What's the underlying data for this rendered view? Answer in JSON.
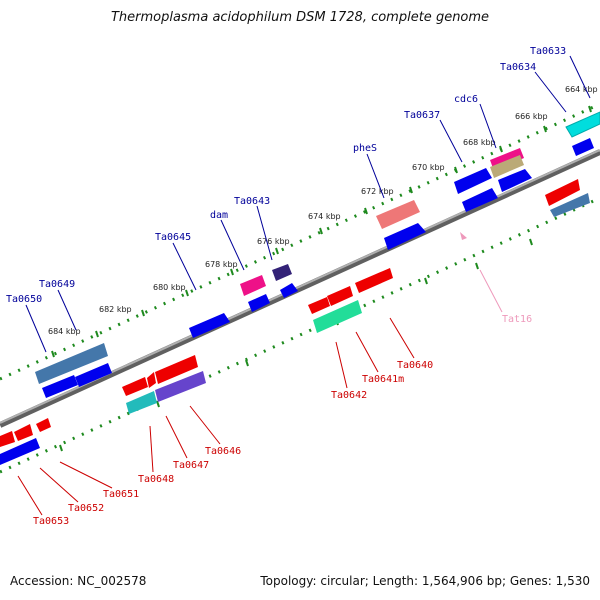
{
  "title": "Thermoplasma acidophilum DSM 1728, complete genome",
  "footer": {
    "accession": "Accession: NC_002578",
    "stats": "Topology: circular; Length: 1,564,906 bp; Genes: 1,530"
  },
  "scale_labels": [
    "664 kbp",
    "666 kbp",
    "668 kbp",
    "670 kbp",
    "672 kbp",
    "674 kbp",
    "676 kbp",
    "678 kbp",
    "680 kbp",
    "682 kbp",
    "684 kbp"
  ],
  "forward_labels": [
    "Ta0633",
    "Ta0634",
    "cdc6",
    "Ta0637",
    "pheS",
    "Ta0643",
    "dam",
    "Ta0645",
    "Ta0649",
    "Ta0650"
  ],
  "reverse_labels": [
    "Ta0640",
    "Ta0641m",
    "Ta0642",
    "Ta0646",
    "Ta0647",
    "Ta0648",
    "Ta0651",
    "Ta0652",
    "Ta0653"
  ],
  "rna_labels": [
    "Tat16"
  ],
  "colors": {
    "backbone": "#8a8a8a",
    "dots": "#1e8a1e",
    "forward_gene": "#0000ee",
    "reverse_gene": "#ee0000",
    "label_blue": "#000099",
    "label_red": "#cc0000"
  }
}
